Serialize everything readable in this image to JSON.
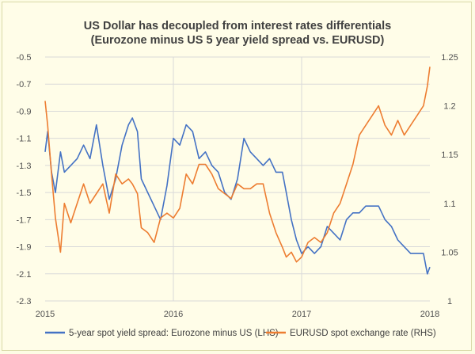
{
  "chart_data": {
    "type": "line",
    "title": "US Dollar has decoupled from interest rates differentials",
    "subtitle": "(Eurozone minus US 5 year yield spread vs. EURUSD)",
    "x_ticks": [
      "2015",
      "2016",
      "2017",
      "2018"
    ],
    "x_range": [
      2015,
      2018
    ],
    "y_left": {
      "range": [
        -2.3,
        -0.5
      ],
      "ticks": [
        "-0.5",
        "-0.7",
        "-0.9",
        "-1.1",
        "-1.3",
        "-1.5",
        "-1.7",
        "-1.9",
        "-2.1",
        "-2.3"
      ],
      "tick_values": [
        -0.5,
        -0.7,
        -0.9,
        -1.1,
        -1.3,
        -1.5,
        -1.7,
        -1.9,
        -2.1,
        -2.3
      ]
    },
    "y_right": {
      "range": [
        1.0,
        1.25
      ],
      "ticks": [
        "1.25",
        "1.2",
        "1.15",
        "1.1",
        "1.05",
        "1"
      ],
      "tick_values": [
        1.25,
        1.2,
        1.15,
        1.1,
        1.05,
        1.0
      ]
    },
    "grid": true,
    "legend_position": "bottom",
    "series": [
      {
        "name": "5-year spot yield spread: Eurozone minus US (LHS)",
        "axis": "left",
        "color": "#4472c4",
        "x": [
          2015.0,
          2015.02,
          2015.05,
          2015.08,
          2015.12,
          2015.15,
          2015.2,
          2015.25,
          2015.3,
          2015.35,
          2015.4,
          2015.45,
          2015.5,
          2015.55,
          2015.6,
          2015.65,
          2015.68,
          2015.72,
          2015.75,
          2015.8,
          2015.85,
          2015.9,
          2015.95,
          2016.0,
          2016.05,
          2016.1,
          2016.15,
          2016.2,
          2016.25,
          2016.3,
          2016.35,
          2016.4,
          2016.45,
          2016.5,
          2016.55,
          2016.6,
          2016.65,
          2016.7,
          2016.75,
          2016.8,
          2016.85,
          2016.88,
          2016.92,
          2016.96,
          2017.0,
          2017.05,
          2017.1,
          2017.15,
          2017.2,
          2017.25,
          2017.3,
          2017.35,
          2017.4,
          2017.45,
          2017.5,
          2017.55,
          2017.6,
          2017.65,
          2017.7,
          2017.75,
          2017.8,
          2017.85,
          2017.9,
          2017.95,
          2017.98,
          2018.0
        ],
        "values": [
          -1.2,
          -1.05,
          -1.35,
          -1.5,
          -1.2,
          -1.35,
          -1.3,
          -1.25,
          -1.15,
          -1.25,
          -1.0,
          -1.3,
          -1.55,
          -1.4,
          -1.15,
          -1.0,
          -0.95,
          -1.05,
          -1.4,
          -1.5,
          -1.6,
          -1.7,
          -1.45,
          -1.1,
          -1.15,
          -1.0,
          -1.05,
          -1.25,
          -1.2,
          -1.3,
          -1.35,
          -1.5,
          -1.55,
          -1.4,
          -1.1,
          -1.2,
          -1.25,
          -1.3,
          -1.25,
          -1.35,
          -1.35,
          -1.5,
          -1.7,
          -1.85,
          -1.95,
          -1.9,
          -1.95,
          -1.9,
          -1.75,
          -1.8,
          -1.85,
          -1.7,
          -1.65,
          -1.65,
          -1.6,
          -1.6,
          -1.6,
          -1.7,
          -1.75,
          -1.85,
          -1.9,
          -1.95,
          -1.95,
          -1.95,
          -2.1,
          -2.05
        ]
      },
      {
        "name": "EURUSD spot exchange rate (RHS)",
        "axis": "right",
        "color": "#ed7d31",
        "x": [
          2015.0,
          2015.02,
          2015.05,
          2015.08,
          2015.12,
          2015.15,
          2015.2,
          2015.25,
          2015.3,
          2015.35,
          2015.4,
          2015.45,
          2015.5,
          2015.55,
          2015.6,
          2015.65,
          2015.68,
          2015.72,
          2015.75,
          2015.8,
          2015.85,
          2015.9,
          2015.95,
          2016.0,
          2016.05,
          2016.1,
          2016.15,
          2016.2,
          2016.25,
          2016.3,
          2016.35,
          2016.4,
          2016.45,
          2016.5,
          2016.55,
          2016.6,
          2016.65,
          2016.7,
          2016.75,
          2016.8,
          2016.85,
          2016.88,
          2016.92,
          2016.96,
          2017.0,
          2017.05,
          2017.1,
          2017.15,
          2017.2,
          2017.25,
          2017.3,
          2017.35,
          2017.4,
          2017.45,
          2017.5,
          2017.55,
          2017.6,
          2017.65,
          2017.7,
          2017.75,
          2017.8,
          2017.85,
          2017.9,
          2017.95,
          2017.98,
          2018.0
        ],
        "values": [
          1.205,
          1.18,
          1.13,
          1.085,
          1.05,
          1.1,
          1.08,
          1.1,
          1.12,
          1.1,
          1.11,
          1.12,
          1.09,
          1.13,
          1.12,
          1.125,
          1.12,
          1.11,
          1.075,
          1.07,
          1.06,
          1.085,
          1.09,
          1.085,
          1.095,
          1.13,
          1.12,
          1.14,
          1.14,
          1.13,
          1.115,
          1.11,
          1.105,
          1.12,
          1.115,
          1.115,
          1.12,
          1.12,
          1.09,
          1.07,
          1.055,
          1.045,
          1.05,
          1.04,
          1.045,
          1.06,
          1.065,
          1.06,
          1.07,
          1.09,
          1.1,
          1.12,
          1.14,
          1.17,
          1.18,
          1.19,
          1.2,
          1.18,
          1.17,
          1.185,
          1.17,
          1.18,
          1.19,
          1.2,
          1.22,
          1.24
        ]
      }
    ]
  }
}
